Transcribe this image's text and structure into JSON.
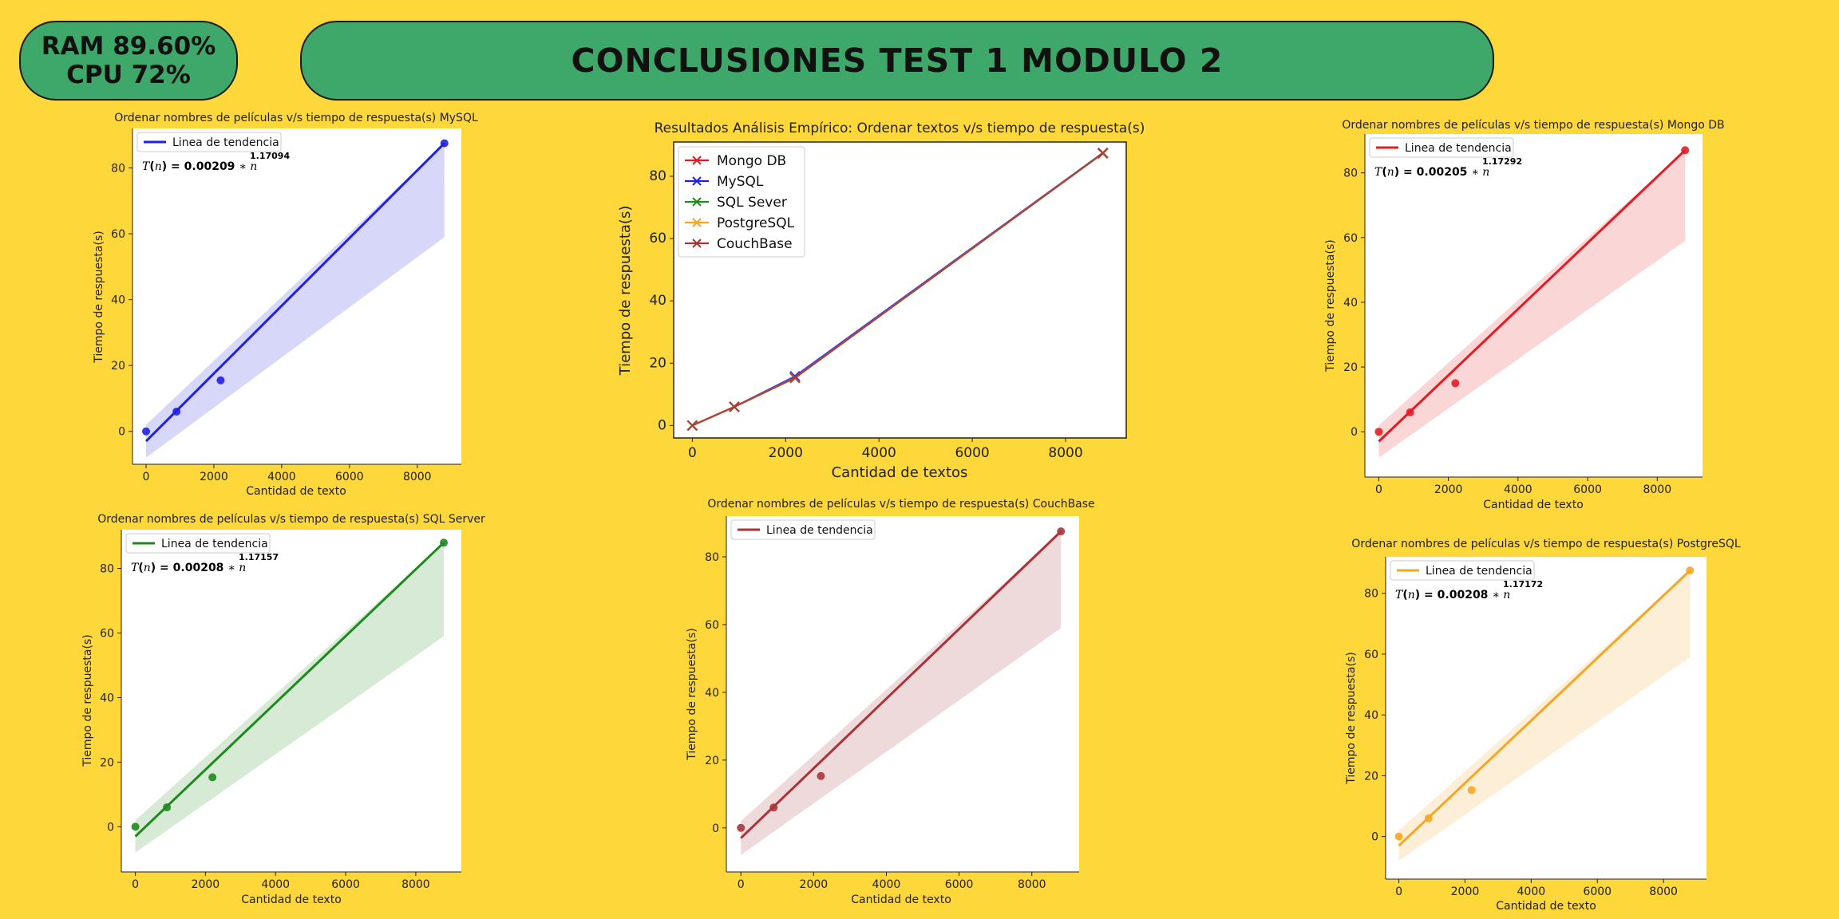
{
  "header": {
    "ram_label": "RAM 89.60%",
    "cpu_label": "CPU 72%",
    "title": "CONCLUSIONES TEST 1 MODULO 2"
  },
  "colors": {
    "background": "#FED73A",
    "banner": "#3EA86A",
    "mysql": "#1F1FE6",
    "mongodb": "#E51B24",
    "sqlserver": "#1E8A1E",
    "couchbase": "#A8343A",
    "postgresql": "#F5A623"
  },
  "chart_data": [
    {
      "id": "mysql",
      "type": "scatter",
      "title": "Ordenar nombres de películas v/s tiempo de respuesta(s) MySQL",
      "xlabel": "Cantidad de texto",
      "ylabel": "Tiempo de respuesta(s)",
      "legend": "Linea de tendencia",
      "legend_position": "top-left",
      "equation": {
        "lhs": "T(n) = 0.00209",
        "op": "∗",
        "var": "n",
        "exp": "1.17094"
      },
      "color": "#1F1FE6",
      "x": [
        0,
        900,
        2200,
        8800
      ],
      "y": [
        0,
        6,
        15.5,
        87.5
      ],
      "trend": {
        "x": [
          0,
          8800
        ],
        "y": [
          -3,
          87.5
        ]
      },
      "band": {
        "x": [
          0,
          8800
        ],
        "upper": [
          2,
          87.5
        ],
        "lower": [
          -8,
          59
        ]
      },
      "xlim": [
        -400,
        9300
      ],
      "ylim": [
        -10,
        92
      ],
      "xticks": [
        0,
        2000,
        4000,
        6000,
        8000
      ],
      "yticks": [
        0,
        20,
        40,
        60,
        80
      ]
    },
    {
      "id": "empirico",
      "type": "line",
      "title": "Resultados Análisis Empírico: Ordenar textos v/s tiempo de respuesta(s)",
      "xlabel": "Cantidad de textos",
      "ylabel": "Tiempo de respuesta(s)",
      "legend_position": "top-left",
      "x": [
        0,
        900,
        2200,
        8800
      ],
      "series": [
        {
          "name": "Mongo DB",
          "color": "#E51B24",
          "values": [
            0,
            6,
            15.3,
            87.4
          ]
        },
        {
          "name": "MySQL",
          "color": "#1F1FE6",
          "values": [
            0,
            6,
            15.8,
            87.5
          ]
        },
        {
          "name": "SQL Sever",
          "color": "#1E8A1E",
          "values": [
            0,
            6,
            15.3,
            87.4
          ]
        },
        {
          "name": "PostgreSQL",
          "color": "#F5A623",
          "values": [
            0,
            6,
            15.3,
            87.4
          ]
        },
        {
          "name": "CouchBase",
          "color": "#A8343A",
          "values": [
            0,
            6,
            15.3,
            87.4
          ]
        }
      ],
      "xlim": [
        -400,
        9300
      ],
      "ylim": [
        -4,
        91
      ],
      "xticks": [
        0,
        2000,
        4000,
        6000,
        8000
      ],
      "yticks": [
        0,
        20,
        40,
        60,
        80
      ]
    },
    {
      "id": "mongodb",
      "type": "scatter",
      "title": "Ordenar nombres de películas v/s tiempo de respuesta(s) Mongo DB",
      "xlabel": "Cantidad de texto",
      "ylabel": "Tiempo de respuesta(s)",
      "legend": "Linea de tendencia",
      "legend_position": "top-left",
      "equation": {
        "lhs": "T(n) = 0.00205",
        "op": "∗",
        "var": "n",
        "exp": "1.17292"
      },
      "color": "#E51B24",
      "x": [
        0,
        900,
        2200,
        8800
      ],
      "y": [
        0,
        6,
        15,
        87
      ],
      "trend": {
        "x": [
          0,
          8800
        ],
        "y": [
          -3,
          87
        ]
      },
      "band": {
        "x": [
          0,
          8800
        ],
        "upper": [
          2,
          87
        ],
        "lower": [
          -8,
          59
        ]
      },
      "xlim": [
        -400,
        9300
      ],
      "ylim": [
        -14,
        92
      ],
      "xticks": [
        0,
        2000,
        4000,
        6000,
        8000
      ],
      "yticks": [
        0,
        20,
        40,
        60,
        80
      ]
    },
    {
      "id": "sqlserver",
      "type": "scatter",
      "title": "Ordenar nombres de películas v/s tiempo de respuesta(s) SQL Server",
      "xlabel": "Cantidad de texto",
      "ylabel": "Tiempo de respuesta(s)",
      "legend": "Linea de tendencia",
      "legend_position": "top-left",
      "equation": {
        "lhs": "T(n) = 0.00208",
        "op": "∗",
        "var": "n",
        "exp": "1.17157"
      },
      "color": "#1E8A1E",
      "x": [
        0,
        900,
        2200,
        8800
      ],
      "y": [
        0,
        6,
        15.3,
        88
      ],
      "trend": {
        "x": [
          0,
          8800
        ],
        "y": [
          -3,
          88
        ]
      },
      "band": {
        "x": [
          0,
          8800
        ],
        "upper": [
          2,
          88
        ],
        "lower": [
          -8,
          59
        ]
      },
      "xlim": [
        -400,
        9300
      ],
      "ylim": [
        -14,
        92
      ],
      "xticks": [
        0,
        2000,
        4000,
        6000,
        8000
      ],
      "yticks": [
        0,
        20,
        40,
        60,
        80
      ]
    },
    {
      "id": "couchbase",
      "type": "scatter",
      "title": "Ordenar nombres de películas v/s tiempo de respuesta(s) CouchBase",
      "xlabel": "Cantidad de texto",
      "ylabel": "Tiempo de respuesta(s)",
      "legend": "Linea de tendencia",
      "legend_position": "top-left",
      "color": "#A8343A",
      "x": [
        0,
        900,
        2200,
        8800
      ],
      "y": [
        0,
        6,
        15.3,
        87.5
      ],
      "trend": {
        "x": [
          0,
          8800
        ],
        "y": [
          -3,
          87.5
        ]
      },
      "band": {
        "x": [
          0,
          8800
        ],
        "upper": [
          2,
          87.5
        ],
        "lower": [
          -8,
          59
        ]
      },
      "xlim": [
        -400,
        9300
      ],
      "ylim": [
        -13,
        92
      ],
      "xticks": [
        0,
        2000,
        4000,
        6000,
        8000
      ],
      "yticks": [
        0,
        20,
        40,
        60,
        80
      ]
    },
    {
      "id": "postgresql",
      "type": "scatter",
      "title": "Ordenar nombres de películas v/s tiempo de respuesta(s) PostgreSQL",
      "xlabel": "Cantidad de texto",
      "ylabel": "Tiempo de respuesta(s)",
      "legend": "Linea de tendencia",
      "legend_position": "top-left",
      "equation": {
        "lhs": "T(n) = 0.00208",
        "op": "∗",
        "var": "n",
        "exp": "1.17172"
      },
      "color": "#F5A623",
      "x": [
        0,
        900,
        2200,
        8800
      ],
      "y": [
        0,
        6,
        15.3,
        87.5
      ],
      "trend": {
        "x": [
          0,
          8800
        ],
        "y": [
          -3,
          87.5
        ]
      },
      "band": {
        "x": [
          0,
          8800
        ],
        "upper": [
          2,
          87.5
        ],
        "lower": [
          -8,
          59
        ]
      },
      "xlim": [
        -400,
        9300
      ],
      "ylim": [
        -14,
        92
      ],
      "xticks": [
        0,
        2000,
        4000,
        6000,
        8000
      ],
      "yticks": [
        0,
        20,
        40,
        60,
        80
      ]
    }
  ]
}
